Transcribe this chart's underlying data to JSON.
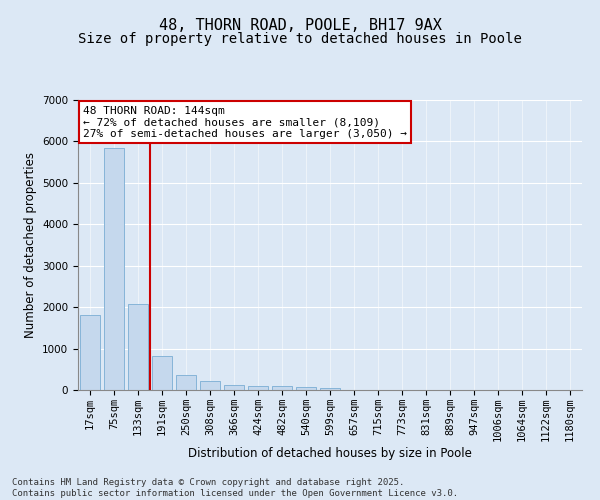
{
  "title1": "48, THORN ROAD, POOLE, BH17 9AX",
  "title2": "Size of property relative to detached houses in Poole",
  "xlabel": "Distribution of detached houses by size in Poole",
  "ylabel": "Number of detached properties",
  "categories": [
    "17sqm",
    "75sqm",
    "133sqm",
    "191sqm",
    "250sqm",
    "308sqm",
    "366sqm",
    "424sqm",
    "482sqm",
    "540sqm",
    "599sqm",
    "657sqm",
    "715sqm",
    "773sqm",
    "831sqm",
    "889sqm",
    "947sqm",
    "1006sqm",
    "1064sqm",
    "1122sqm",
    "1180sqm"
  ],
  "values": [
    1800,
    5850,
    2080,
    820,
    360,
    220,
    120,
    90,
    90,
    65,
    50,
    0,
    0,
    0,
    0,
    0,
    0,
    0,
    0,
    0,
    0
  ],
  "bar_color": "#c5d8ed",
  "bar_edge_color": "#7aadd4",
  "vline_color": "#cc0000",
  "annotation_text": "48 THORN ROAD: 144sqm\n← 72% of detached houses are smaller (8,109)\n27% of semi-detached houses are larger (3,050) →",
  "annotation_box_color": "#ffffff",
  "annotation_box_edge": "#cc0000",
  "ylim": [
    0,
    7000
  ],
  "yticks": [
    0,
    1000,
    2000,
    3000,
    4000,
    5000,
    6000,
    7000
  ],
  "bg_color": "#dce8f5",
  "plot_bg_color": "#dce8f5",
  "footer": "Contains HM Land Registry data © Crown copyright and database right 2025.\nContains public sector information licensed under the Open Government Licence v3.0.",
  "title_fontsize": 11,
  "subtitle_fontsize": 10,
  "axis_label_fontsize": 8.5,
  "tick_fontsize": 7.5,
  "annotation_fontsize": 8,
  "footer_fontsize": 6.5
}
